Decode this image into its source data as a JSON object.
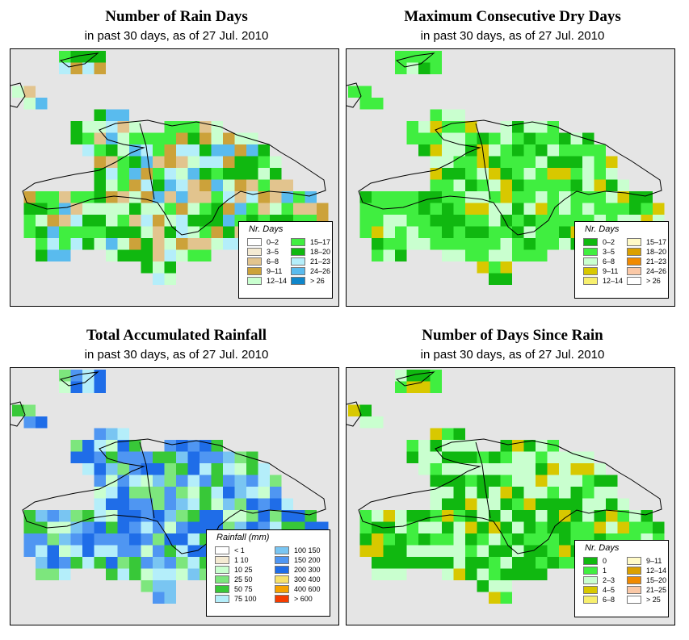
{
  "panels": [
    {
      "id": "rain-days",
      "title": "Number of Rain Days",
      "subtitle": "in past 30 days, as of  27 Jul. 2010",
      "legend": {
        "title": "Nr. Days",
        "items": [
          {
            "label": "0–2",
            "color": "#ffffff"
          },
          {
            "label": "3–5",
            "color": "#f4ead2"
          },
          {
            "label": "6–8",
            "color": "#e2c48e"
          },
          {
            "label": "9–11",
            "color": "#cca23a"
          },
          {
            "label": "12–14",
            "color": "#c9ffcf"
          },
          {
            "label": "15–17",
            "color": "#40ee40"
          },
          {
            "label": "18–20",
            "color": "#10b810"
          },
          {
            "label": "21–23",
            "color": "#b4eefa"
          },
          {
            "label": "24–26",
            "color": "#59bbee"
          },
          {
            "label": "> 26",
            "color": "#0f86ca"
          }
        ]
      }
    },
    {
      "id": "dry-days",
      "title": "Maximum Consecutive Dry Days",
      "subtitle": "in past 30 days, as of  27 Jul. 2010",
      "legend": {
        "title": "Nr. Days",
        "items": [
          {
            "label": "0–2",
            "color": "#10b810"
          },
          {
            "label": "3–5",
            "color": "#40ee40"
          },
          {
            "label": "6–8",
            "color": "#c9ffcf"
          },
          {
            "label": "9–11",
            "color": "#d8c800"
          },
          {
            "label": "12–14",
            "color": "#f7ef6e"
          },
          {
            "label": "15–17",
            "color": "#fffac6"
          },
          {
            "label": "18–20",
            "color": "#dba000"
          },
          {
            "label": "21–23",
            "color": "#f08a00"
          },
          {
            "label": "24–26",
            "color": "#fac8a6"
          },
          {
            "label": "> 26",
            "color": "#ffffff"
          }
        ]
      }
    },
    {
      "id": "rainfall",
      "title": "Total Accumulated Rainfall",
      "subtitle": "in past 30 days, as of  27 Jul. 2010",
      "legend": {
        "title": "Rainfall (mm)",
        "items": [
          {
            "label": "< 1",
            "color": "#ffffff"
          },
          {
            "label": "1    10",
            "color": "#f4ead2"
          },
          {
            "label": "10    25",
            "color": "#c9ffcf"
          },
          {
            "label": "25    50",
            "color": "#7de67d"
          },
          {
            "label": "50    75",
            "color": "#38c838"
          },
          {
            "label": "75    100",
            "color": "#b4eefa"
          },
          {
            "label": "100   150",
            "color": "#79c5f2"
          },
          {
            "label": "150   200",
            "color": "#4f96f2"
          },
          {
            "label": "200   300",
            "color": "#1f6de8"
          },
          {
            "label": "300   400",
            "color": "#f7e16a"
          },
          {
            "label": "400   600",
            "color": "#f5a200"
          },
          {
            "label": "> 600",
            "color": "#f53c00"
          }
        ]
      }
    },
    {
      "id": "since-rain",
      "title": "Number of Days Since Rain",
      "subtitle": "in past 30 days, as of  27 Jul. 2010",
      "legend": {
        "title": "Nr. Days",
        "items": [
          {
            "label": "0",
            "color": "#10b810"
          },
          {
            "label": "1",
            "color": "#40ee40"
          },
          {
            "label": "2–3",
            "color": "#c9ffcf"
          },
          {
            "label": "4–5",
            "color": "#d8c800"
          },
          {
            "label": "6–8",
            "color": "#f7ef6e"
          },
          {
            "label": "9–11",
            "color": "#fffac6"
          },
          {
            "label": "12–14",
            "color": "#dba000"
          },
          {
            "label": "15–20",
            "color": "#f08a00"
          },
          {
            "label": "21–25",
            "color": "#fac8a6"
          },
          {
            "label": "> 25",
            "color": "#ffffff"
          }
        ]
      }
    }
  ]
}
